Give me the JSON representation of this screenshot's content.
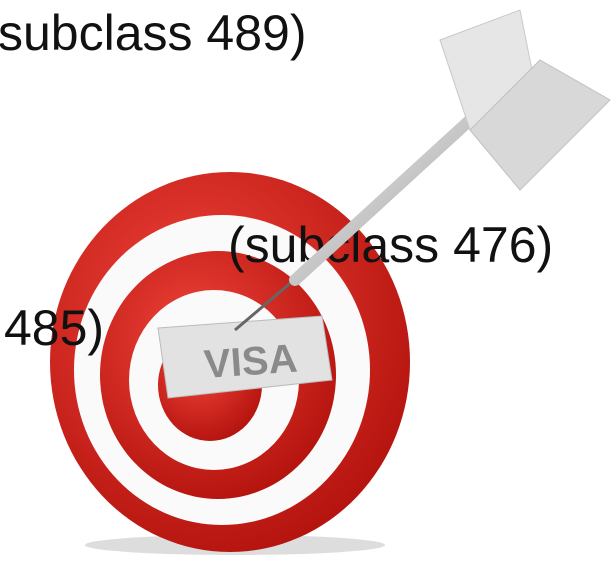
{
  "texts": {
    "line1": "subclass 489)",
    "line2": "(subclass 476)",
    "line3": "485)"
  },
  "badge": "VISA"
}
